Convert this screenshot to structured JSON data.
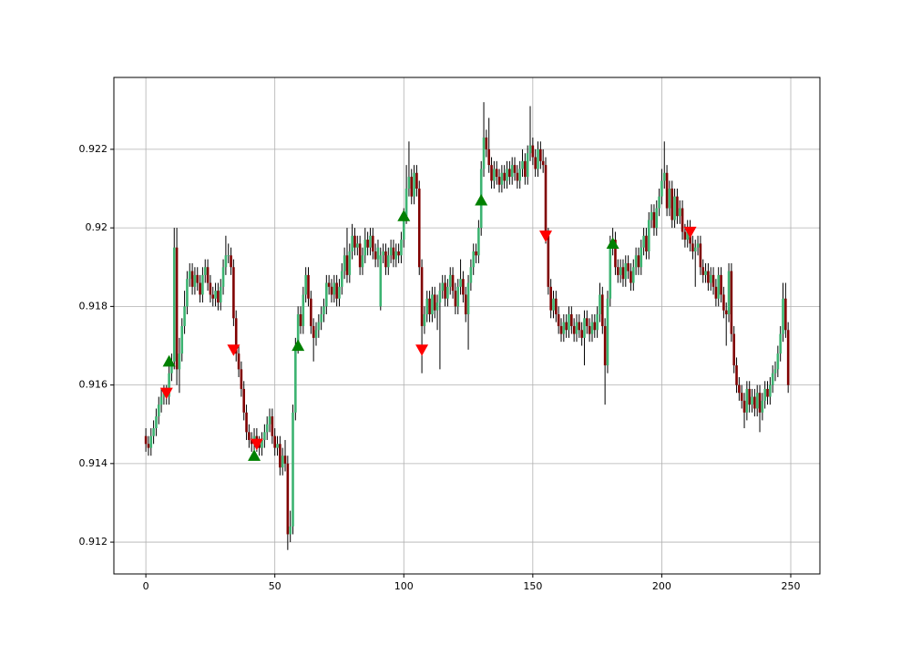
{
  "chart_data": {
    "type": "candlestick",
    "x": [
      0,
      1,
      2,
      3,
      4,
      5,
      6,
      7,
      8,
      9,
      10,
      11,
      12,
      13,
      14,
      15,
      16,
      17,
      18,
      19,
      20,
      21,
      22,
      23,
      24,
      25,
      26,
      27,
      28,
      29,
      30,
      31,
      32,
      33,
      34,
      35,
      36,
      37,
      38,
      39,
      40,
      41,
      42,
      43,
      44,
      45,
      46,
      47,
      48,
      49,
      50,
      51,
      52,
      53,
      54,
      55,
      56,
      57,
      58,
      59,
      60,
      61,
      62,
      63,
      64,
      65,
      66,
      67,
      68,
      69,
      70,
      71,
      72,
      73,
      74,
      75,
      76,
      77,
      78,
      79,
      80,
      81,
      82,
      83,
      84,
      85,
      86,
      87,
      88,
      89,
      90,
      91,
      92,
      93,
      94,
      95,
      96,
      97,
      98,
      99,
      100,
      101,
      102,
      103,
      104,
      105,
      106,
      107,
      108,
      109,
      110,
      111,
      112,
      113,
      114,
      115,
      116,
      117,
      118,
      119,
      120,
      121,
      122,
      123,
      124,
      125,
      126,
      127,
      128,
      129,
      130,
      131,
      132,
      133,
      134,
      135,
      136,
      137,
      138,
      139,
      140,
      141,
      142,
      143,
      144,
      145,
      146,
      147,
      148,
      149,
      150,
      151,
      152,
      153,
      154,
      155,
      156,
      157,
      158,
      159,
      160,
      161,
      162,
      163,
      164,
      165,
      166,
      167,
      168,
      169,
      170,
      171,
      172,
      173,
      174,
      175,
      176,
      177,
      178,
      179,
      180,
      181,
      182,
      183,
      184,
      185,
      186,
      187,
      188,
      189,
      190,
      191,
      192,
      193,
      194,
      195,
      196,
      197,
      198,
      199,
      200,
      201,
      202,
      203,
      204,
      205,
      206,
      207,
      208,
      209,
      210,
      211,
      212,
      213,
      214,
      215,
      216,
      217,
      218,
      219,
      220,
      221,
      222,
      223,
      224,
      225,
      226,
      227,
      228,
      229,
      230,
      231,
      232,
      233,
      234,
      235,
      236,
      237,
      238,
      239,
      240,
      241,
      242,
      243,
      244,
      245,
      246,
      247,
      248,
      249
    ],
    "open": [
      0.9147,
      0.9145,
      0.9144,
      0.9147,
      0.9149,
      0.9152,
      0.9155,
      0.9157,
      0.9158,
      0.9157,
      0.9163,
      0.9166,
      0.9195,
      0.9164,
      0.9168,
      0.9175,
      0.918,
      0.9187,
      0.9189,
      0.9185,
      0.9188,
      0.9186,
      0.9183,
      0.9188,
      0.919,
      0.9186,
      0.9183,
      0.9182,
      0.9184,
      0.9181,
      0.9185,
      0.919,
      0.9193,
      0.9193,
      0.919,
      0.9177,
      0.9168,
      0.9164,
      0.9159,
      0.9153,
      0.9148,
      0.9146,
      0.9145,
      0.9147,
      0.9145,
      0.9144,
      0.9146,
      0.9148,
      0.915,
      0.9152,
      0.9147,
      0.9144,
      0.9145,
      0.9139,
      0.9142,
      0.914,
      0.9122,
      0.9124,
      0.9153,
      0.917,
      0.9178,
      0.9175,
      0.9183,
      0.9188,
      0.9182,
      0.9175,
      0.9172,
      0.9174,
      0.9176,
      0.9178,
      0.918,
      0.9186,
      0.9185,
      0.9183,
      0.9186,
      0.9182,
      0.9185,
      0.9189,
      0.9193,
      0.9188,
      0.9194,
      0.9198,
      0.9195,
      0.9196,
      0.919,
      0.9193,
      0.9197,
      0.9195,
      0.9198,
      0.9194,
      0.9192,
      0.918,
      0.9193,
      0.9194,
      0.919,
      0.9193,
      0.9195,
      0.9192,
      0.9194,
      0.9193,
      0.9197,
      0.9203,
      0.921,
      0.9213,
      0.9208,
      0.9214,
      0.921,
      0.919,
      0.9175,
      0.9178,
      0.9182,
      0.9178,
      0.9183,
      0.9179,
      0.9181,
      0.9184,
      0.9186,
      0.9182,
      0.9185,
      0.9188,
      0.9184,
      0.918,
      0.9185,
      0.9187,
      0.9183,
      0.9178,
      0.9186,
      0.919,
      0.9194,
      0.9193,
      0.92,
      0.9215,
      0.9223,
      0.922,
      0.9216,
      0.9212,
      0.9215,
      0.9213,
      0.9211,
      0.9214,
      0.9212,
      0.9215,
      0.9213,
      0.9216,
      0.9214,
      0.9212,
      0.9215,
      0.9217,
      0.9213,
      0.9219,
      0.9221,
      0.9218,
      0.9215,
      0.922,
      0.9217,
      0.9216,
      0.9198,
      0.9185,
      0.9179,
      0.9182,
      0.9178,
      0.9175,
      0.9173,
      0.9176,
      0.9174,
      0.9178,
      0.9175,
      0.9173,
      0.9176,
      0.9174,
      0.9172,
      0.9177,
      0.9175,
      0.9173,
      0.9176,
      0.9174,
      0.9178,
      0.9183,
      0.9175,
      0.9165,
      0.9182,
      0.9195,
      0.9197,
      0.919,
      0.9188,
      0.919,
      0.9187,
      0.9191,
      0.9189,
      0.9186,
      0.919,
      0.9193,
      0.919,
      0.9195,
      0.9198,
      0.9194,
      0.9202,
      0.9204,
      0.92,
      0.9205,
      0.9208,
      0.9212,
      0.9214,
      0.9205,
      0.921,
      0.9202,
      0.9208,
      0.9203,
      0.9205,
      0.9199,
      0.9197,
      0.92,
      0.9196,
      0.9194,
      0.9195,
      0.9196,
      0.919,
      0.9188,
      0.9189,
      0.9186,
      0.9188,
      0.9185,
      0.9182,
      0.9188,
      0.9183,
      0.9179,
      0.9178,
      0.9189,
      0.9173,
      0.9165,
      0.916,
      0.9158,
      0.9156,
      0.9153,
      0.9159,
      0.9155,
      0.9157,
      0.9154,
      0.9158,
      0.9153,
      0.9156,
      0.9159,
      0.9157,
      0.916,
      0.9163,
      0.9164,
      0.9168,
      0.9173,
      0.9182,
      0.9174
    ],
    "high": [
      0.9149,
      0.9147,
      0.9149,
      0.9151,
      0.9154,
      0.9157,
      0.9159,
      0.916,
      0.916,
      0.9165,
      0.9168,
      0.92,
      0.92,
      0.9172,
      0.9177,
      0.9184,
      0.9189,
      0.9191,
      0.9191,
      0.919,
      0.919,
      0.9188,
      0.919,
      0.9192,
      0.9192,
      0.9188,
      0.9185,
      0.9186,
      0.9186,
      0.9187,
      0.9192,
      0.9198,
      0.9196,
      0.9195,
      0.9192,
      0.9179,
      0.917,
      0.9166,
      0.9161,
      0.9155,
      0.915,
      0.9148,
      0.9149,
      0.9149,
      0.9147,
      0.9148,
      0.915,
      0.9152,
      0.9154,
      0.9154,
      0.9149,
      0.9147,
      0.9147,
      0.9144,
      0.9146,
      0.9142,
      0.9128,
      0.9155,
      0.9172,
      0.918,
      0.918,
      0.9185,
      0.919,
      0.919,
      0.9184,
      0.9177,
      0.9176,
      0.9178,
      0.918,
      0.9182,
      0.9188,
      0.9188,
      0.9187,
      0.9188,
      0.9188,
      0.9187,
      0.9191,
      0.9195,
      0.92,
      0.9196,
      0.9201,
      0.92,
      0.9198,
      0.9198,
      0.9195,
      0.92,
      0.9199,
      0.92,
      0.92,
      0.9196,
      0.9197,
      0.9195,
      0.9196,
      0.9196,
      0.9195,
      0.9197,
      0.9197,
      0.9196,
      0.9196,
      0.9199,
      0.9205,
      0.9216,
      0.9222,
      0.9215,
      0.9216,
      0.9216,
      0.9212,
      0.9192,
      0.918,
      0.9184,
      0.9184,
      0.9185,
      0.9185,
      0.9183,
      0.9186,
      0.9188,
      0.9188,
      0.9187,
      0.919,
      0.919,
      0.9186,
      0.9187,
      0.9192,
      0.9189,
      0.9185,
      0.9188,
      0.9192,
      0.9196,
      0.9196,
      0.9202,
      0.9217,
      0.9232,
      0.9225,
      0.9228,
      0.9218,
      0.9217,
      0.9217,
      0.9215,
      0.9216,
      0.9216,
      0.9217,
      0.9217,
      0.9218,
      0.9218,
      0.9216,
      0.9217,
      0.922,
      0.9219,
      0.9221,
      0.9231,
      0.9223,
      0.922,
      0.9222,
      0.9222,
      0.922,
      0.9218,
      0.92,
      0.9187,
      0.9184,
      0.9184,
      0.918,
      0.9177,
      0.9178,
      0.9178,
      0.918,
      0.918,
      0.9177,
      0.9178,
      0.9178,
      0.9176,
      0.9179,
      0.9179,
      0.9177,
      0.9178,
      0.9178,
      0.918,
      0.9186,
      0.9185,
      0.9177,
      0.9184,
      0.9198,
      0.92,
      0.9199,
      0.9192,
      0.9192,
      0.9192,
      0.9193,
      0.9193,
      0.9191,
      0.9192,
      0.9195,
      0.9195,
      0.9197,
      0.92,
      0.92,
      0.9204,
      0.9206,
      0.9206,
      0.9207,
      0.921,
      0.9215,
      0.9222,
      0.9216,
      0.9212,
      0.9212,
      0.921,
      0.921,
      0.9207,
      0.9207,
      0.9201,
      0.9202,
      0.9202,
      0.9198,
      0.9197,
      0.9198,
      0.9198,
      0.9192,
      0.9191,
      0.9191,
      0.919,
      0.919,
      0.9187,
      0.919,
      0.919,
      0.9185,
      0.9181,
      0.9191,
      0.9191,
      0.9175,
      0.9167,
      0.9162,
      0.916,
      0.9158,
      0.9161,
      0.9161,
      0.9159,
      0.9159,
      0.916,
      0.916,
      0.9158,
      0.9161,
      0.9161,
      0.9162,
      0.9165,
      0.9166,
      0.917,
      0.9175,
      0.9186,
      0.9186,
      0.9176
    ],
    "low": [
      0.9143,
      0.9142,
      0.9142,
      0.9145,
      0.9147,
      0.915,
      0.9153,
      0.9155,
      0.9155,
      0.9155,
      0.9161,
      0.9164,
      0.916,
      0.9158,
      0.9166,
      0.9173,
      0.9178,
      0.9185,
      0.9183,
      0.9183,
      0.9184,
      0.9181,
      0.9181,
      0.9186,
      0.9184,
      0.9181,
      0.918,
      0.918,
      0.9179,
      0.9179,
      0.9183,
      0.9188,
      0.9191,
      0.9188,
      0.9175,
      0.9166,
      0.9162,
      0.9157,
      0.9151,
      0.9146,
      0.9144,
      0.9143,
      0.9143,
      0.9143,
      0.9142,
      0.9142,
      0.9144,
      0.9146,
      0.9148,
      0.9145,
      0.9142,
      0.9142,
      0.9137,
      0.9137,
      0.9138,
      0.9118,
      0.912,
      0.9122,
      0.9151,
      0.9168,
      0.9173,
      0.9173,
      0.9181,
      0.918,
      0.9173,
      0.9166,
      0.917,
      0.9172,
      0.9174,
      0.9176,
      0.9178,
      0.9183,
      0.9181,
      0.9181,
      0.918,
      0.918,
      0.9183,
      0.9187,
      0.9186,
      0.9186,
      0.9192,
      0.9193,
      0.9193,
      0.9188,
      0.9188,
      0.9191,
      0.9193,
      0.9193,
      0.9192,
      0.919,
      0.919,
      0.9179,
      0.9191,
      0.9188,
      0.9188,
      0.9191,
      0.919,
      0.919,
      0.9191,
      0.9191,
      0.9195,
      0.9201,
      0.9208,
      0.9206,
      0.9206,
      0.9208,
      0.9188,
      0.9163,
      0.9173,
      0.9176,
      0.9176,
      0.9176,
      0.9177,
      0.9174,
      0.9164,
      0.9182,
      0.918,
      0.918,
      0.9183,
      0.9182,
      0.9178,
      0.9178,
      0.9183,
      0.9181,
      0.9176,
      0.9169,
      0.9184,
      0.9188,
      0.9191,
      0.9191,
      0.9198,
      0.9213,
      0.9218,
      0.9214,
      0.921,
      0.921,
      0.9211,
      0.9209,
      0.9209,
      0.921,
      0.921,
      0.9211,
      0.9211,
      0.9212,
      0.921,
      0.921,
      0.9213,
      0.9211,
      0.9211,
      0.9217,
      0.9216,
      0.9213,
      0.9213,
      0.9215,
      0.9214,
      0.9196,
      0.9183,
      0.9177,
      0.9177,
      0.9176,
      0.9173,
      0.9171,
      0.9171,
      0.9172,
      0.9172,
      0.9173,
      0.9171,
      0.9171,
      0.9172,
      0.917,
      0.9165,
      0.9173,
      0.9171,
      0.9171,
      0.9172,
      0.9172,
      0.9176,
      0.9173,
      0.9155,
      0.9163,
      0.918,
      0.9193,
      0.9188,
      0.9186,
      0.9186,
      0.9185,
      0.9185,
      0.9187,
      0.9184,
      0.9184,
      0.9188,
      0.9188,
      0.9188,
      0.9193,
      0.9192,
      0.9192,
      0.92,
      0.9198,
      0.9198,
      0.9203,
      0.9206,
      0.921,
      0.9203,
      0.9203,
      0.92,
      0.92,
      0.9201,
      0.9201,
      0.9197,
      0.9195,
      0.9195,
      0.9194,
      0.9192,
      0.9185,
      0.9193,
      0.9188,
      0.9186,
      0.9186,
      0.9184,
      0.9184,
      0.9183,
      0.918,
      0.918,
      0.9181,
      0.9177,
      0.917,
      0.9176,
      0.9171,
      0.9163,
      0.9158,
      0.9156,
      0.9154,
      0.9149,
      0.9151,
      0.9153,
      0.9153,
      0.9152,
      0.9152,
      0.9148,
      0.9151,
      0.9154,
      0.9155,
      0.9155,
      0.9158,
      0.9161,
      0.9162,
      0.9166,
      0.9171,
      0.9172,
      0.9158
    ],
    "close": [
      0.9145,
      0.9144,
      0.9147,
      0.9149,
      0.9152,
      0.9155,
      0.9157,
      0.9158,
      0.9157,
      0.9163,
      0.9166,
      0.9195,
      0.9164,
      0.9168,
      0.9175,
      0.918,
      0.9187,
      0.9189,
      0.9185,
      0.9188,
      0.9186,
      0.9183,
      0.9188,
      0.919,
      0.9186,
      0.9183,
      0.9182,
      0.9184,
      0.9181,
      0.9185,
      0.919,
      0.9193,
      0.9193,
      0.919,
      0.9177,
      0.9168,
      0.9164,
      0.9159,
      0.9153,
      0.9148,
      0.9146,
      0.9145,
      0.9147,
      0.9145,
      0.9144,
      0.9146,
      0.9148,
      0.915,
      0.9152,
      0.9147,
      0.9144,
      0.9145,
      0.9139,
      0.9142,
      0.914,
      0.9122,
      0.9124,
      0.9153,
      0.917,
      0.9178,
      0.9175,
      0.9183,
      0.9188,
      0.9182,
      0.9175,
      0.9172,
      0.9174,
      0.9176,
      0.9178,
      0.918,
      0.9186,
      0.9185,
      0.9183,
      0.9186,
      0.9182,
      0.9185,
      0.9189,
      0.9193,
      0.9188,
      0.9194,
      0.9198,
      0.9195,
      0.9196,
      0.919,
      0.9193,
      0.9197,
      0.9195,
      0.9198,
      0.9194,
      0.9192,
      0.9195,
      0.9193,
      0.9194,
      0.919,
      0.9193,
      0.9195,
      0.9192,
      0.9194,
      0.9193,
      0.9197,
      0.9203,
      0.921,
      0.9213,
      0.9208,
      0.9214,
      0.921,
      0.919,
      0.9175,
      0.9178,
      0.9182,
      0.9178,
      0.9183,
      0.9179,
      0.9181,
      0.9184,
      0.9186,
      0.9182,
      0.9185,
      0.9188,
      0.9184,
      0.918,
      0.9185,
      0.9187,
      0.9183,
      0.9178,
      0.9186,
      0.919,
      0.9194,
      0.9193,
      0.92,
      0.9215,
      0.9223,
      0.922,
      0.9216,
      0.9212,
      0.9215,
      0.9213,
      0.9211,
      0.9214,
      0.9212,
      0.9215,
      0.9213,
      0.9216,
      0.9214,
      0.9212,
      0.9215,
      0.9217,
      0.9213,
      0.9219,
      0.9221,
      0.9218,
      0.9215,
      0.922,
      0.9217,
      0.9216,
      0.9198,
      0.9185,
      0.9179,
      0.9182,
      0.9178,
      0.9175,
      0.9173,
      0.9176,
      0.9174,
      0.9178,
      0.9175,
      0.9173,
      0.9176,
      0.9174,
      0.9172,
      0.9177,
      0.9175,
      0.9173,
      0.9176,
      0.9174,
      0.9178,
      0.9183,
      0.9175,
      0.9165,
      0.9182,
      0.9195,
      0.9197,
      0.919,
      0.9188,
      0.919,
      0.9187,
      0.9191,
      0.9189,
      0.9186,
      0.919,
      0.9193,
      0.919,
      0.9195,
      0.9198,
      0.9194,
      0.9202,
      0.9204,
      0.92,
      0.9205,
      0.9208,
      0.9212,
      0.9214,
      0.9205,
      0.921,
      0.9202,
      0.9208,
      0.9203,
      0.9205,
      0.9199,
      0.9197,
      0.92,
      0.9196,
      0.9194,
      0.9195,
      0.9196,
      0.919,
      0.9188,
      0.9189,
      0.9186,
      0.9188,
      0.9185,
      0.9182,
      0.9188,
      0.9183,
      0.9179,
      0.9178,
      0.9189,
      0.9173,
      0.9165,
      0.916,
      0.9158,
      0.9156,
      0.9153,
      0.9159,
      0.9155,
      0.9157,
      0.9154,
      0.9158,
      0.9153,
      0.9156,
      0.9159,
      0.9157,
      0.916,
      0.9163,
      0.9164,
      0.9168,
      0.9173,
      0.9182,
      0.9174,
      0.916
    ],
    "up_color": "mediumseagreen",
    "down_color": "maroon",
    "wick_color": "black",
    "markers": [
      {
        "marker": "triangle-up",
        "color": "green",
        "x": [
          9,
          42,
          59,
          100,
          130,
          181
        ],
        "y": [
          0.9166,
          0.9142,
          0.917,
          0.9203,
          0.9207,
          0.9196
        ]
      },
      {
        "marker": "triangle-down",
        "color": "red",
        "x": [
          8,
          34,
          43,
          107,
          155,
          211
        ],
        "y": [
          0.9158,
          0.9169,
          0.9145,
          0.9169,
          0.9198,
          0.9199
        ]
      }
    ],
    "xlim": [
      -12.4,
      261.3
    ],
    "ylim": [
      0.91119,
      0.92383
    ],
    "xticks": [
      0,
      50,
      100,
      150,
      200,
      250
    ],
    "yticks": [
      0.912,
      0.914,
      0.916,
      0.918,
      0.92,
      0.922
    ],
    "grid": true
  }
}
